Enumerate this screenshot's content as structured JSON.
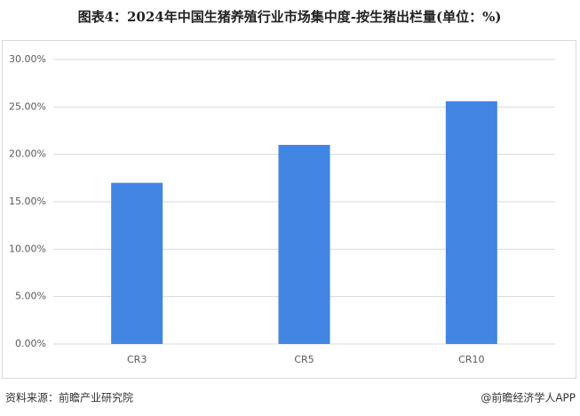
{
  "chart_data": {
    "type": "bar",
    "title": "图表4：2024年中国生猪养殖行业市场集中度-按生猪出栏量(单位：%)",
    "categories": [
      "CR3",
      "CR5",
      "CR10"
    ],
    "values": [
      17.0,
      21.0,
      25.6
    ],
    "color": "#4285e3",
    "ylim": [
      0,
      30
    ],
    "yticks": [
      {
        "value": 0,
        "label": "0.00%"
      },
      {
        "value": 5,
        "label": "5.00%"
      },
      {
        "value": 10,
        "label": "10.00%"
      },
      {
        "value": 15,
        "label": "15.00%"
      },
      {
        "value": 20,
        "label": "20.00%"
      },
      {
        "value": 25,
        "label": "25.00%"
      },
      {
        "value": 30,
        "label": "30.00%"
      }
    ],
    "grid": true,
    "source": "资料来源：前瞻产业研究院",
    "credit": "@前瞻经济学人APP"
  }
}
